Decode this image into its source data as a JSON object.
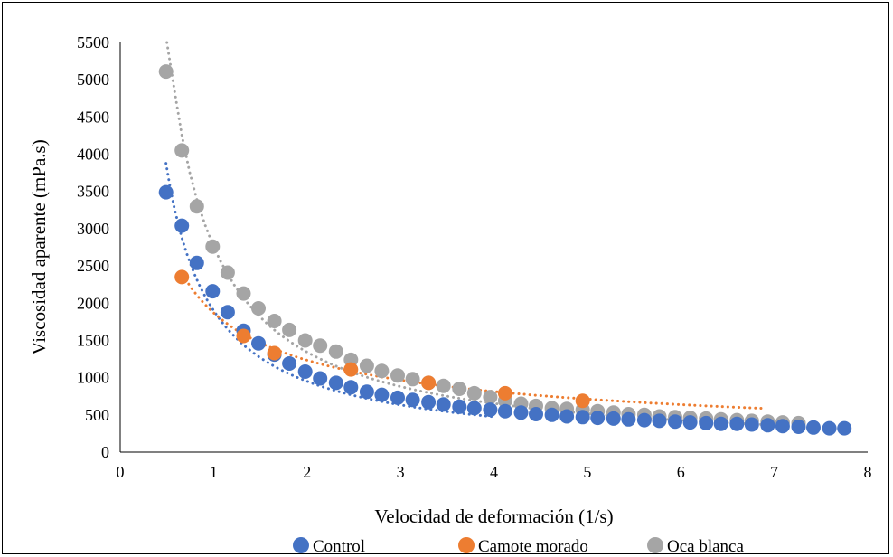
{
  "chart_data": {
    "type": "scatter",
    "title": "",
    "xlabel": "Velocidad de deformación (1/s)",
    "ylabel": "Viscosidad aparente (mPa.s)",
    "xlim": [
      0,
      8
    ],
    "ylim": [
      0,
      5500
    ],
    "xticks": [
      0,
      1,
      2,
      3,
      4,
      5,
      6,
      7,
      8
    ],
    "yticks": [
      0,
      500,
      1000,
      1500,
      2000,
      2500,
      3000,
      3500,
      4000,
      4500,
      5000,
      5500
    ],
    "grid": false,
    "legend_position": "bottom",
    "series": [
      {
        "name": "Control",
        "color": "#4472C4",
        "x": [
          0.49,
          0.66,
          0.82,
          0.99,
          1.15,
          1.32,
          1.48,
          1.65,
          1.81,
          1.98,
          2.14,
          2.31,
          2.47,
          2.64,
          2.8,
          2.97,
          3.13,
          3.3,
          3.46,
          3.63,
          3.79,
          3.96,
          4.12,
          4.29,
          4.45,
          4.62,
          4.78,
          4.95,
          5.11,
          5.28,
          5.44,
          5.61,
          5.77,
          5.94,
          6.1,
          6.27,
          6.43,
          6.6,
          6.76,
          6.93,
          7.09,
          7.26,
          7.42,
          7.59,
          7.75
        ],
        "y": [
          3490,
          3040,
          2540,
          2160,
          1880,
          1630,
          1460,
          1310,
          1190,
          1080,
          990,
          930,
          870,
          810,
          770,
          730,
          700,
          670,
          640,
          610,
          590,
          570,
          550,
          530,
          510,
          500,
          480,
          470,
          460,
          450,
          440,
          430,
          420,
          410,
          400,
          390,
          380,
          380,
          370,
          360,
          350,
          340,
          330,
          320,
          320
        ],
        "trendline": {
          "type": "power",
          "color": "#4472C4",
          "x": [
            0.49,
            4.0
          ],
          "a": 1900,
          "b": -1.0
        }
      },
      {
        "name": "Camote morado",
        "color": "#ED7D31",
        "x": [
          0.66,
          1.32,
          1.65,
          2.47,
          3.3,
          4.12,
          4.95
        ],
        "y": [
          2350,
          1560,
          1330,
          1110,
          930,
          790,
          690
        ],
        "trendline": {
          "type": "power",
          "color": "#ED7D31",
          "x": [
            0.7,
            6.9
          ],
          "a": 1870,
          "b": -0.6
        }
      },
      {
        "name": "Oca blanca",
        "color": "#A5A5A5",
        "x": [
          0.49,
          0.66,
          0.82,
          0.99,
          1.15,
          1.32,
          1.48,
          1.65,
          1.81,
          1.98,
          2.14,
          2.31,
          2.47,
          2.64,
          2.8,
          2.97,
          3.13,
          3.3,
          3.46,
          3.63,
          3.79,
          3.96,
          4.12,
          4.29,
          4.45,
          4.62,
          4.78,
          4.95,
          5.11,
          5.28,
          5.44,
          5.61,
          5.77,
          5.94,
          6.1,
          6.27,
          6.43,
          6.6,
          6.76,
          6.93,
          7.09,
          7.26
        ],
        "y": [
          5110,
          4050,
          3300,
          2760,
          2410,
          2130,
          1930,
          1760,
          1640,
          1500,
          1430,
          1350,
          1240,
          1160,
          1090,
          1030,
          980,
          930,
          890,
          850,
          790,
          740,
          690,
          650,
          620,
          590,
          580,
          570,
          550,
          530,
          510,
          500,
          480,
          470,
          460,
          450,
          440,
          430,
          420,
          410,
          400,
          390
        ],
        "trendline": {
          "type": "power",
          "color": "#A5A5A5",
          "x": [
            0.5,
            7.0
          ],
          "a": 2760,
          "b": -1.04
        }
      }
    ]
  }
}
